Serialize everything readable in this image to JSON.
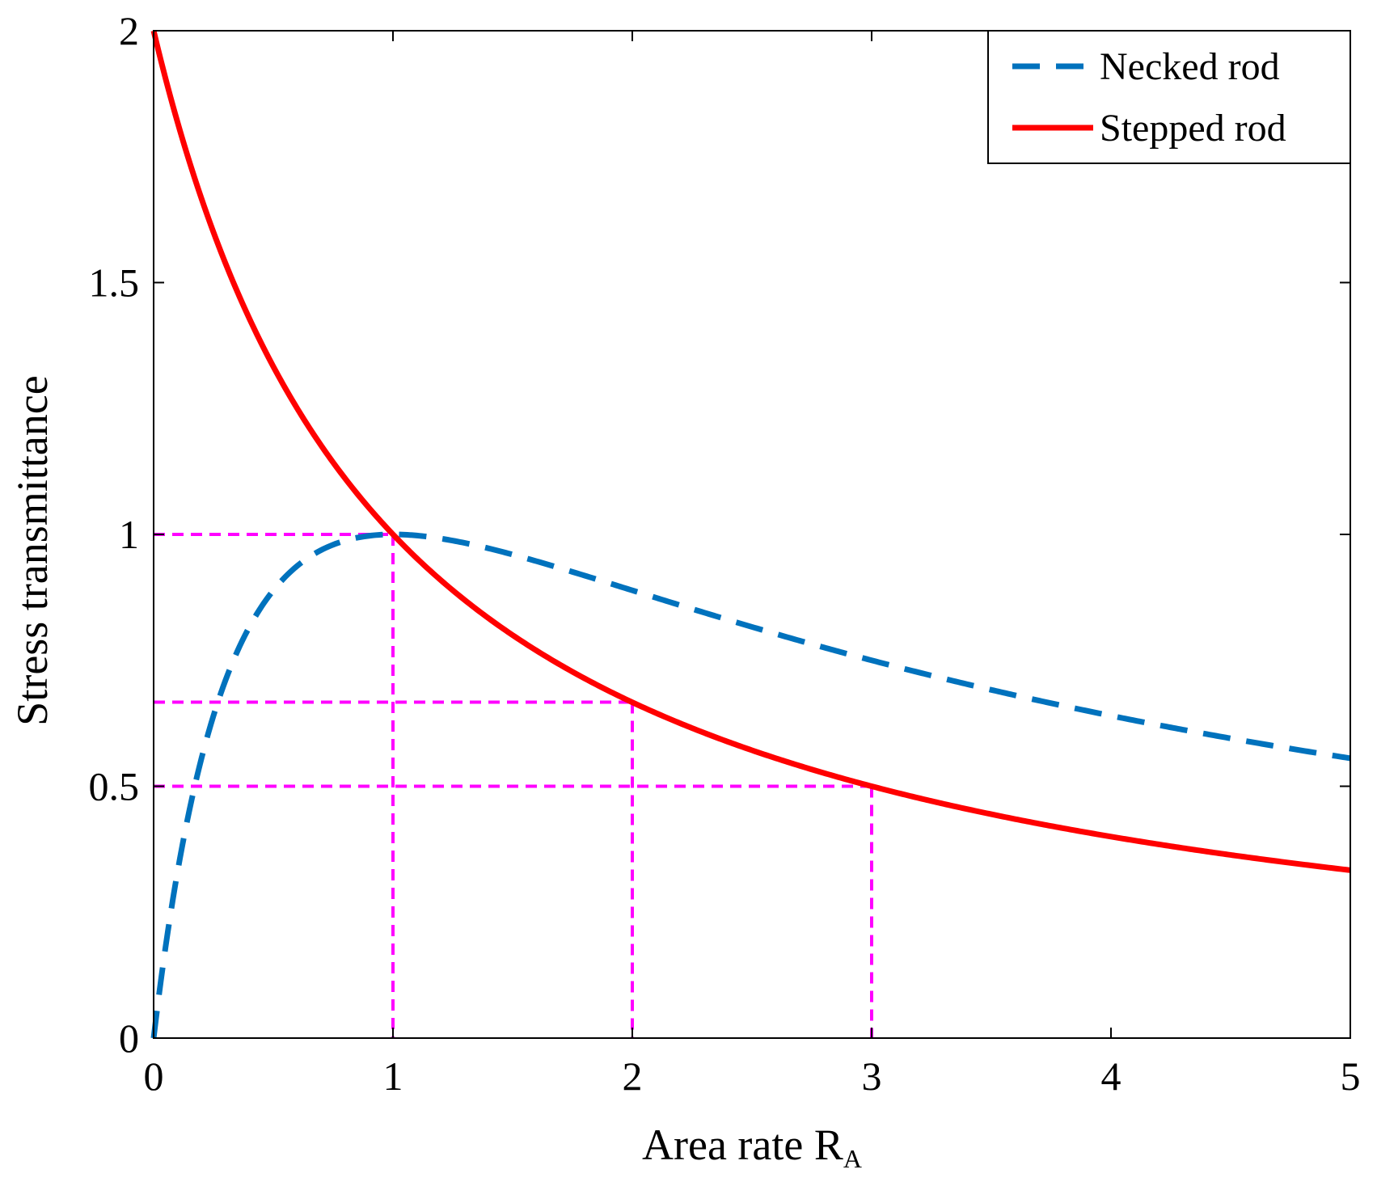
{
  "chart_data": {
    "type": "line",
    "title": "",
    "xlabel": "Area rate R",
    "xlabel_subscript": "A",
    "ylabel": "Stress transmittance",
    "xlim": [
      0,
      5
    ],
    "ylim": [
      0,
      2
    ],
    "xticks": [
      "0",
      "1",
      "2",
      "3",
      "4",
      "5"
    ],
    "xtick_values": [
      0,
      1,
      2,
      3,
      4,
      5
    ],
    "yticks": [
      "0",
      "0.5",
      "1",
      "1.5",
      "2"
    ],
    "ytick_values": [
      0,
      0.5,
      1,
      1.5,
      2
    ],
    "grid": false,
    "legend_position": "top-right",
    "series": [
      {
        "name": "Necked rod",
        "style": "dashed",
        "color": "#0072BD",
        "formula": "4R/(1+R)^2",
        "x": [
          0,
          0.05,
          0.1,
          0.15,
          0.2,
          0.25,
          0.3,
          0.4,
          0.5,
          0.6,
          0.7,
          0.8,
          0.9,
          1.0,
          1.25,
          1.5,
          1.75,
          2.0,
          2.5,
          3.0,
          3.5,
          4.0,
          4.5,
          5.0
        ],
        "values": [
          0,
          0.181,
          0.331,
          0.454,
          0.556,
          0.64,
          0.71,
          0.816,
          0.889,
          0.938,
          0.969,
          0.988,
          0.997,
          1.0,
          0.988,
          0.96,
          0.926,
          0.889,
          0.816,
          0.75,
          0.691,
          0.64,
          0.595,
          0.556
        ]
      },
      {
        "name": "Stepped rod",
        "style": "solid",
        "color": "#FF0000",
        "formula": "2/(1+R)",
        "x": [
          0,
          0.05,
          0.1,
          0.15,
          0.2,
          0.25,
          0.3,
          0.4,
          0.5,
          0.6,
          0.7,
          0.8,
          0.9,
          1.0,
          1.25,
          1.5,
          1.75,
          2.0,
          2.5,
          3.0,
          3.5,
          4.0,
          4.5,
          5.0
        ],
        "values": [
          2.0,
          1.905,
          1.818,
          1.739,
          1.667,
          1.6,
          1.538,
          1.429,
          1.333,
          1.25,
          1.176,
          1.111,
          1.053,
          1.0,
          0.889,
          0.8,
          0.727,
          0.667,
          0.571,
          0.5,
          0.444,
          0.4,
          0.364,
          0.333
        ]
      }
    ],
    "reference_lines": {
      "color": "#FF00FF",
      "style": "dashed",
      "points": [
        {
          "x": 1,
          "y": 1.0
        },
        {
          "x": 2,
          "y": 0.667
        },
        {
          "x": 3,
          "y": 0.5
        }
      ]
    }
  }
}
